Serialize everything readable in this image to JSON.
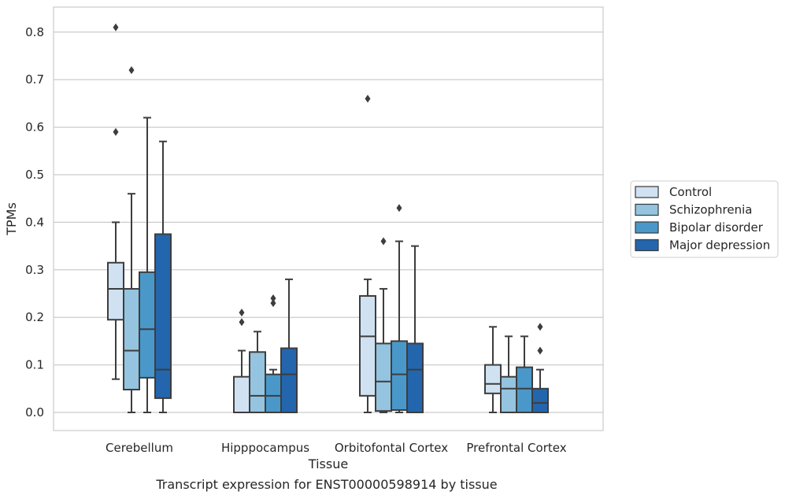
{
  "caption": "Transcript expression for ENST00000598914 by tissue",
  "chart_data": {
    "type": "box",
    "xlabel": "Tissue",
    "ylabel": "TPMs",
    "ylim": [
      -0.04,
      0.855
    ],
    "yticks": [
      "0.0",
      "0.1",
      "0.2",
      "0.3",
      "0.4",
      "0.5",
      "0.6",
      "0.7",
      "0.8"
    ],
    "ytick_values": [
      0,
      0.1,
      0.2,
      0.3,
      0.4,
      0.5,
      0.6,
      0.7,
      0.8
    ],
    "grid": "horizontal",
    "legend_position": "right",
    "categories": [
      "Cerebellum",
      "Hipppocampus",
      "Orbitofontal Cortex",
      "Prefrontal Cortex"
    ],
    "series": [
      {
        "name": "Control",
        "color": "#d0e1f2",
        "boxes": [
          {
            "whislo": 0.07,
            "q1": 0.195,
            "med": 0.26,
            "q3": 0.315,
            "whishi": 0.4,
            "fliers": [
              0.59,
              0.81
            ]
          },
          {
            "whislo": 0.0,
            "q1": 0.0,
            "med": 0.0,
            "q3": 0.075,
            "whishi": 0.13,
            "fliers": [
              0.19,
              0.21
            ]
          },
          {
            "whislo": 0.0,
            "q1": 0.035,
            "med": 0.16,
            "q3": 0.245,
            "whishi": 0.28,
            "fliers": [
              0.66
            ]
          },
          {
            "whislo": 0.0,
            "q1": 0.04,
            "med": 0.06,
            "q3": 0.1,
            "whishi": 0.18,
            "fliers": []
          }
        ]
      },
      {
        "name": "Schizophrenia",
        "color": "#94c4df",
        "boxes": [
          {
            "whislo": 0.0,
            "q1": 0.048,
            "med": 0.13,
            "q3": 0.26,
            "whishi": 0.46,
            "fliers": [
              0.72
            ]
          },
          {
            "whislo": 0.0,
            "q1": 0.0,
            "med": 0.035,
            "q3": 0.127,
            "whishi": 0.17,
            "fliers": []
          },
          {
            "whislo": 0.0,
            "q1": 0.003,
            "med": 0.065,
            "q3": 0.145,
            "whishi": 0.26,
            "fliers": [
              0.36
            ]
          },
          {
            "whislo": 0.0,
            "q1": 0.0,
            "med": 0.05,
            "q3": 0.075,
            "whishi": 0.16,
            "fliers": []
          }
        ]
      },
      {
        "name": "Bipolar disorder",
        "color": "#4a98c9",
        "boxes": [
          {
            "whislo": 0.0,
            "q1": 0.073,
            "med": 0.175,
            "q3": 0.295,
            "whishi": 0.62,
            "fliers": []
          },
          {
            "whislo": 0.0,
            "q1": 0.0,
            "med": 0.035,
            "q3": 0.08,
            "whishi": 0.09,
            "fliers": [
              0.23,
              0.24
            ]
          },
          {
            "whislo": 0.0,
            "q1": 0.005,
            "med": 0.08,
            "q3": 0.15,
            "whishi": 0.36,
            "fliers": [
              0.43
            ]
          },
          {
            "whislo": 0.0,
            "q1": 0.0,
            "med": 0.05,
            "q3": 0.095,
            "whishi": 0.16,
            "fliers": []
          }
        ]
      },
      {
        "name": "Major depression",
        "color": "#2366ad",
        "boxes": [
          {
            "whislo": 0.0,
            "q1": 0.03,
            "med": 0.09,
            "q3": 0.375,
            "whishi": 0.57,
            "fliers": []
          },
          {
            "whislo": 0.0,
            "q1": 0.0,
            "med": 0.08,
            "q3": 0.135,
            "whishi": 0.28,
            "fliers": []
          },
          {
            "whislo": 0.0,
            "q1": 0.0,
            "med": 0.09,
            "q3": 0.145,
            "whishi": 0.35,
            "fliers": []
          },
          {
            "whislo": 0.0,
            "q1": 0.0,
            "med": 0.02,
            "q3": 0.05,
            "whishi": 0.09,
            "fliers": [
              0.13,
              0.18
            ]
          }
        ]
      }
    ]
  }
}
